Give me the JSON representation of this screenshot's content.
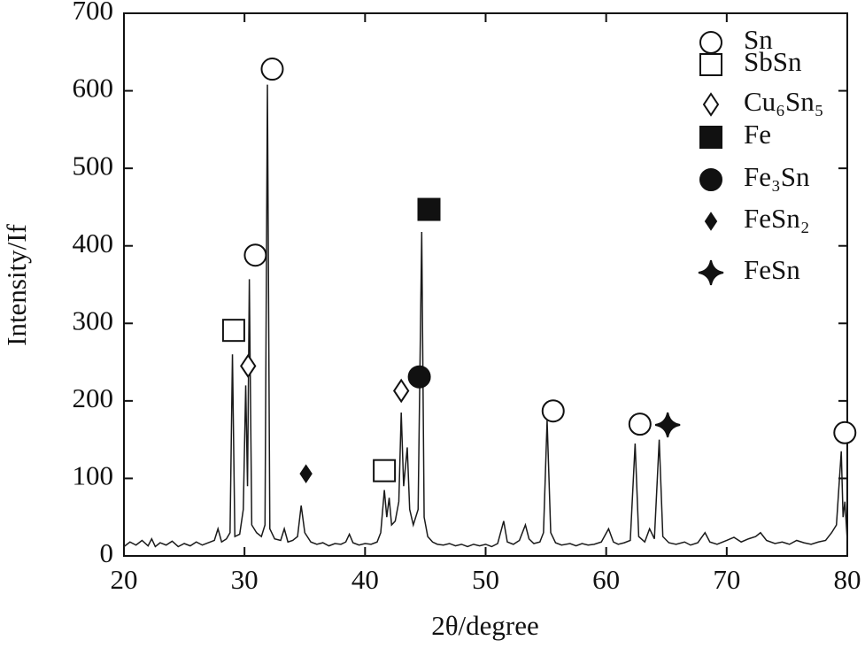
{
  "chart_data": {
    "type": "line",
    "xlabel": "2θ/degree",
    "ylabel": "Intensity/If",
    "xlim": [
      20,
      80
    ],
    "xticks": [
      20,
      30,
      40,
      50,
      60,
      70,
      80
    ],
    "ylim": [
      0,
      700
    ],
    "yticks": [
      0,
      100,
      200,
      300,
      400,
      500,
      600,
      700
    ],
    "color": "#1a1a1a",
    "x": [
      20,
      20.5,
      21,
      21.5,
      22,
      22.3,
      22.6,
      23,
      23.5,
      24,
      24.5,
      25,
      25.5,
      26,
      26.5,
      27,
      27.5,
      27.8,
      28.1,
      28.5,
      28.8,
      29.0,
      29.2,
      29.6,
      29.9,
      30.1,
      30.25,
      30.4,
      30.6,
      31.0,
      31.4,
      31.7,
      31.9,
      32.1,
      32.5,
      33.0,
      33.3,
      33.6,
      34.0,
      34.4,
      34.7,
      35.0,
      35.5,
      36,
      36.5,
      37,
      37.5,
      38,
      38.4,
      38.7,
      39,
      39.5,
      40,
      40.5,
      41,
      41.3,
      41.6,
      41.8,
      42.0,
      42.2,
      42.5,
      42.8,
      43.0,
      43.2,
      43.5,
      43.7,
      44.0,
      44.4,
      44.7,
      44.9,
      45.2,
      45.6,
      46,
      46.5,
      47,
      47.5,
      48,
      48.5,
      49,
      49.5,
      50,
      50.5,
      51,
      51.5,
      51.8,
      52.3,
      52.8,
      53.3,
      53.6,
      54,
      54.5,
      54.8,
      55.1,
      55.4,
      55.8,
      56.3,
      57,
      57.5,
      58,
      58.5,
      59,
      59.6,
      60.2,
      60.6,
      61,
      61.5,
      62,
      62.4,
      62.7,
      63.2,
      63.6,
      64.0,
      64.4,
      64.7,
      65.2,
      65.8,
      66.5,
      67,
      67.6,
      68.2,
      68.6,
      69.2,
      70,
      70.6,
      71.2,
      71.8,
      72.4,
      72.8,
      73.3,
      74,
      74.6,
      75.2,
      75.8,
      76.4,
      77,
      77.6,
      78.2,
      78.7,
      79.1,
      79.5,
      79.65,
      79.8,
      80
    ],
    "values": [
      12,
      18,
      14,
      20,
      13,
      22,
      12,
      17,
      14,
      19,
      12,
      16,
      13,
      18,
      14,
      17,
      20,
      35,
      18,
      22,
      30,
      260,
      25,
      28,
      60,
      220,
      90,
      357,
      40,
      30,
      25,
      40,
      608,
      35,
      22,
      20,
      35,
      18,
      20,
      25,
      65,
      30,
      18,
      15,
      17,
      13,
      16,
      15,
      18,
      28,
      17,
      14,
      16,
      15,
      18,
      30,
      85,
      50,
      75,
      40,
      45,
      70,
      185,
      90,
      140,
      60,
      40,
      60,
      418,
      50,
      25,
      18,
      15,
      14,
      16,
      13,
      15,
      12,
      15,
      13,
      15,
      12,
      16,
      45,
      18,
      15,
      20,
      40,
      22,
      16,
      18,
      30,
      175,
      30,
      17,
      14,
      16,
      13,
      16,
      14,
      15,
      18,
      35,
      18,
      15,
      17,
      20,
      145,
      25,
      18,
      35,
      22,
      150,
      25,
      17,
      15,
      18,
      14,
      17,
      30,
      18,
      15,
      20,
      24,
      18,
      22,
      25,
      30,
      20,
      16,
      18,
      15,
      20,
      17,
      15,
      18,
      20,
      30,
      40,
      135,
      50,
      70,
      20
    ],
    "phases": [
      {
        "name": "Sn",
        "symbol": "circle",
        "x": [
          32.3,
          30.9,
          55.6,
          62.8,
          79.8
        ],
        "values": [
          628,
          388,
          187,
          170,
          159
        ]
      },
      {
        "name": "SbSn",
        "symbol": "square",
        "x": [
          29.1,
          41.6
        ],
        "values": [
          291,
          110
        ]
      },
      {
        "name": "Cu₆Sn₅",
        "symbol": "diamond",
        "x": [
          30.3,
          43.0
        ],
        "values": [
          245,
          213
        ]
      },
      {
        "name": "Fe",
        "symbol": "filled-square",
        "x": [
          45.3
        ],
        "values": [
          447
        ]
      },
      {
        "name": "Fe₃Sn",
        "symbol": "filled-circle",
        "x": [
          44.5
        ],
        "values": [
          231
        ]
      },
      {
        "name": "FeSn₂",
        "symbol": "filled-diamond",
        "x": [
          35.1
        ],
        "values": [
          106
        ]
      },
      {
        "name": "FeSn",
        "symbol": "star",
        "x": [
          65.1
        ],
        "values": [
          169
        ]
      }
    ]
  }
}
